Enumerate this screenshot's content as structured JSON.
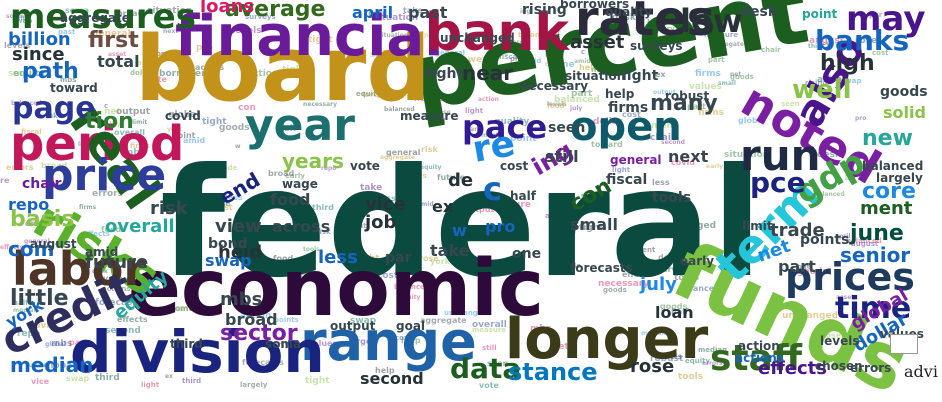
{
  "figure": {
    "caption": "advi",
    "colors": [
      "#0b4a3e",
      "#1f3f8f",
      "#c3921a",
      "#6a1b9a",
      "#d81b60",
      "#2e7d32",
      "#1e88e5",
      "#8bc34a",
      "#4a148c",
      "#00695c",
      "#263238",
      "#37474f"
    ]
  },
  "word_cloud": [
    {
      "text": "federal",
      "color": "#0b4a3e"
    },
    {
      "text": "percent",
      "color": "#1b5e20"
    },
    {
      "text": "board",
      "color": "#c3921a"
    },
    {
      "text": "economic",
      "color": "#2d0a3a"
    },
    {
      "text": "financial",
      "color": "#6a1b9a"
    },
    {
      "text": "funds",
      "color": "#7cc242"
    },
    {
      "text": "longer",
      "color": "#3b3b1a"
    },
    {
      "text": "range",
      "color": "#1f62a8"
    },
    {
      "text": "division",
      "color": "#1a237e"
    },
    {
      "text": "bank",
      "color": "#a31545"
    },
    {
      "text": "rates",
      "color": "#2b2b3b"
    },
    {
      "text": "period",
      "color": "#c2185b"
    },
    {
      "text": "year",
      "color": "#1b6f6f"
    },
    {
      "text": "open",
      "color": "#0e5a6b"
    },
    {
      "text": "real",
      "color": "#1b5e20"
    },
    {
      "text": "noted",
      "color": "#7b1fa2"
    },
    {
      "text": "risks",
      "color": "#5ab12b"
    },
    {
      "text": "price",
      "color": "#2c3e9a"
    },
    {
      "text": "labor",
      "color": "#4e3426"
    },
    {
      "text": "run",
      "color": "#1f2a44"
    },
    {
      "text": "term",
      "color": "#26c6da"
    },
    {
      "text": "also",
      "color": "#4a148c"
    },
    {
      "text": "credit",
      "color": "#2e2e5e"
    },
    {
      "text": "prices",
      "color": "#1e3a5f"
    },
    {
      "text": "measures",
      "color": "#1b5e20"
    },
    {
      "text": "page",
      "color": "#283593"
    },
    {
      "text": "pace",
      "color": "#311b92"
    },
    {
      "text": "may",
      "color": "#4a148c"
    },
    {
      "text": "banks",
      "color": "#1565c0"
    },
    {
      "text": "low",
      "color": "#263238"
    },
    {
      "text": "gdp",
      "color": "#43a047"
    },
    {
      "text": "pce",
      "color": "#1a237e"
    },
    {
      "text": "staff",
      "color": "#33691e"
    },
    {
      "text": "data",
      "color": "#1b5e20"
    },
    {
      "text": "stance",
      "color": "#0277bd"
    },
    {
      "text": "sector",
      "color": "#7b1fa2"
    },
    {
      "text": "time",
      "color": "#1a237e"
    },
    {
      "text": "june",
      "color": "#004d40"
    },
    {
      "text": "senior",
      "color": "#1565c0"
    },
    {
      "text": "little",
      "color": "#37474f"
    },
    {
      "text": "well",
      "color": "#8bc34a"
    },
    {
      "text": "high",
      "color": "#263238"
    },
    {
      "text": "new",
      "color": "#26a69a"
    },
    {
      "text": "core",
      "color": "#1e88e5"
    },
    {
      "text": "many",
      "color": "#37474f"
    },
    {
      "text": "near",
      "color": "#263238"
    },
    {
      "text": "path",
      "color": "#1565c0"
    },
    {
      "text": "first",
      "color": "#6d4c41"
    },
    {
      "text": "average",
      "color": "#33691e"
    },
    {
      "text": "loans",
      "color": "#d81b60"
    },
    {
      "text": "billion",
      "color": "#1565c0"
    },
    {
      "text": "since",
      "color": "#263238"
    },
    {
      "text": "total",
      "color": "#37474f"
    },
    {
      "text": "tion",
      "color": "#2e7d32"
    },
    {
      "text": "end",
      "color": "#1a237e"
    },
    {
      "text": "years",
      "color": "#8bc34a"
    },
    {
      "text": "basis",
      "color": "#8bc34a"
    },
    {
      "text": "com",
      "color": "#1565c0"
    },
    {
      "text": "view",
      "color": "#37474f"
    },
    {
      "text": "held",
      "color": "#263238"
    },
    {
      "text": "risk",
      "color": "#37474f"
    },
    {
      "text": "overall",
      "color": "#26a69a"
    },
    {
      "text": "future",
      "color": "#37474f"
    },
    {
      "text": "vice",
      "color": "#263238"
    },
    {
      "text": "job",
      "color": "#263238"
    },
    {
      "text": "less",
      "color": "#1565c0"
    },
    {
      "text": "across",
      "color": "#37474f"
    },
    {
      "text": "mbs",
      "color": "#37474f"
    },
    {
      "text": "broad",
      "color": "#37474f"
    },
    {
      "text": "equity",
      "color": "#26a69a"
    },
    {
      "text": "york",
      "color": "#1565c0"
    },
    {
      "text": "median",
      "color": "#1565c0"
    },
    {
      "text": "second",
      "color": "#263238"
    },
    {
      "text": "rose",
      "color": "#263238"
    },
    {
      "text": "effects",
      "color": "#4a148c"
    },
    {
      "text": "dollar",
      "color": "#1565c0"
    },
    {
      "text": "global",
      "color": "#7b1fa2"
    },
    {
      "text": "july",
      "color": "#1e88e5"
    },
    {
      "text": "loan",
      "color": "#263238"
    },
    {
      "text": "trade",
      "color": "#37474f"
    },
    {
      "text": "net",
      "color": "#1e88e5"
    },
    {
      "text": "ment",
      "color": "#1b5e20"
    },
    {
      "text": "part",
      "color": "#37474f"
    },
    {
      "text": "con",
      "color": "#1b5e20"
    },
    {
      "text": "ing",
      "color": "#7b1fa2"
    },
    {
      "text": "re",
      "color": "#1e88e5"
    },
    {
      "text": "asset",
      "color": "#263238"
    },
    {
      "text": "april",
      "color": "#1565c0"
    },
    {
      "text": "past",
      "color": "#37474f"
    },
    {
      "text": "rising",
      "color": "#37474f"
    },
    {
      "text": "desk",
      "color": "#37474f"
    },
    {
      "text": "point",
      "color": "#26a69a"
    },
    {
      "text": "tight",
      "color": "#37474f"
    },
    {
      "text": "light",
      "color": "#37474f"
    },
    {
      "text": "firms",
      "color": "#37474f"
    },
    {
      "text": "goods",
      "color": "#37474f"
    },
    {
      "text": "solid",
      "color": "#8bc34a"
    },
    {
      "text": "points",
      "color": "#37474f"
    },
    {
      "text": "food",
      "color": "#37474f"
    },
    {
      "text": "bond",
      "color": "#37474f"
    },
    {
      "text": "swap",
      "color": "#1565c0"
    },
    {
      "text": "chair",
      "color": "#6a1b9a"
    },
    {
      "text": "repo",
      "color": "#1565c0"
    },
    {
      "text": "small",
      "color": "#37474f"
    },
    {
      "text": "take",
      "color": "#37474f"
    },
    {
      "text": "one",
      "color": "#37474f"
    },
    {
      "text": "par",
      "color": "#37474f"
    },
    {
      "text": "pro",
      "color": "#1565c0"
    },
    {
      "text": "still",
      "color": "#37474f"
    },
    {
      "text": "seen",
      "color": "#37474f"
    },
    {
      "text": "fiscal",
      "color": "#37474f"
    },
    {
      "text": "next",
      "color": "#37474f"
    },
    {
      "text": "wage",
      "color": "#37474f"
    },
    {
      "text": "tools",
      "color": "#37474f"
    },
    {
      "text": "general",
      "color": "#7b1fa2"
    },
    {
      "text": "c",
      "color": "#1565c0"
    },
    {
      "text": "de",
      "color": "#263238"
    },
    {
      "text": "ex",
      "color": "#263238"
    },
    {
      "text": "w",
      "color": "#1565c0"
    },
    {
      "text": "soma",
      "color": "#37474f"
    },
    {
      "text": "third",
      "color": "#37474f"
    },
    {
      "text": "action",
      "color": "#37474f"
    },
    {
      "text": "actions",
      "color": "#1565c0"
    },
    {
      "text": "values",
      "color": "#37474f"
    },
    {
      "text": "balanced",
      "color": "#37474f"
    },
    {
      "text": "largely",
      "color": "#37474f"
    },
    {
      "text": "forecasts",
      "color": "#37474f"
    },
    {
      "text": "output",
      "color": "#37474f"
    },
    {
      "text": "goal",
      "color": "#37474f"
    },
    {
      "text": "amid",
      "color": "#37474f"
    },
    {
      "text": "august",
      "color": "#37474f"
    },
    {
      "text": "cost",
      "color": "#37474f"
    },
    {
      "text": "half",
      "color": "#37474f"
    },
    {
      "text": "robust",
      "color": "#37474f"
    },
    {
      "text": "quality",
      "color": "#37474f"
    },
    {
      "text": "borrowers",
      "color": "#37474f"
    },
    {
      "text": "surveys",
      "color": "#37474f"
    },
    {
      "text": "unchanged",
      "color": "#37474f"
    },
    {
      "text": "aggregate",
      "color": "#37474f"
    },
    {
      "text": "situation",
      "color": "#37474f"
    },
    {
      "text": "necessary",
      "color": "#37474f"
    },
    {
      "text": "toward",
      "color": "#37474f"
    },
    {
      "text": "measure",
      "color": "#37474f"
    },
    {
      "text": "vote",
      "color": "#37474f"
    },
    {
      "text": "covid",
      "color": "#37474f"
    },
    {
      "text": "limit",
      "color": "#37474f"
    },
    {
      "text": "early",
      "color": "#37474f"
    },
    {
      "text": "errors",
      "color": "#37474f"
    },
    {
      "text": "chosen",
      "color": "#37474f"
    },
    {
      "text": "levels",
      "color": "#37474f"
    },
    {
      "text": "help",
      "color": "#37474f"
    }
  ]
}
